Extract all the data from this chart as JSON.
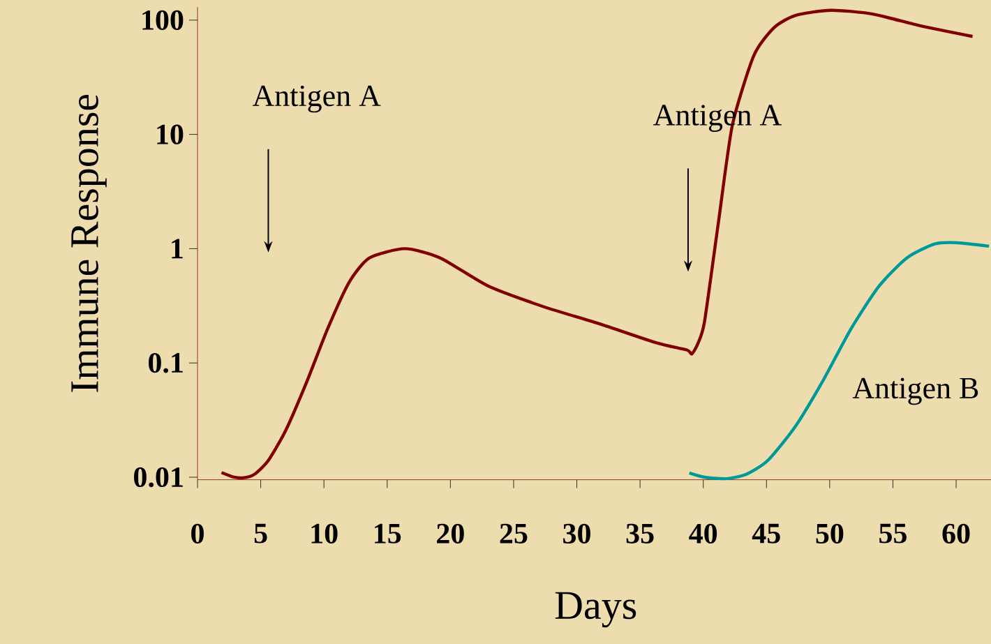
{
  "chart_data": {
    "type": "line",
    "xlabel": "Days",
    "ylabel": "Immune Response",
    "log": "y",
    "xlim": [
      0,
      63
    ],
    "ylim": [
      0.0095,
      130
    ],
    "xticks": [
      0,
      5,
      10,
      15,
      20,
      25,
      30,
      35,
      40,
      45,
      50,
      55,
      60
    ],
    "yticks": [
      0.01,
      0.1,
      1,
      10,
      100
    ],
    "grid": false,
    "marker": "none",
    "line_style": "solid",
    "annotations": [
      "Antigen A",
      "Antigen A"
    ],
    "series": [
      {
        "color": "#800000",
        "x": [
          1.9,
          2.9,
          3.7,
          4.5,
          5.6,
          7.0,
          8.7,
          10.3,
          12.0,
          13.6,
          16.4,
          19.2,
          23.0,
          27.4,
          31.8,
          36.3,
          38.7,
          39.1,
          39.6,
          40.1,
          41.2,
          42.3,
          44.0,
          45.6,
          47.3,
          50.1,
          53.4,
          57.2,
          61.3
        ],
        "values": [
          0.011,
          0.01,
          0.0099,
          0.0106,
          0.014,
          0.026,
          0.071,
          0.2,
          0.51,
          0.83,
          1.0,
          0.83,
          0.47,
          0.31,
          0.22,
          0.15,
          0.13,
          0.12,
          0.15,
          0.23,
          1.7,
          12,
          49,
          86,
          110,
          122,
          113,
          89,
          72
        ]
      },
      {
        "name": "Antigen B",
        "color": "#009999",
        "x": [
          38.9,
          40.1,
          41.8,
          43.4,
          45.1,
          47.3,
          49.5,
          51.7,
          53.9,
          56.1,
          58.3,
          60.0,
          62.6
        ],
        "values": [
          0.0109,
          0.01,
          0.0097,
          0.0106,
          0.014,
          0.028,
          0.071,
          0.2,
          0.47,
          0.83,
          1.1,
          1.13,
          1.05
        ]
      }
    ]
  }
}
